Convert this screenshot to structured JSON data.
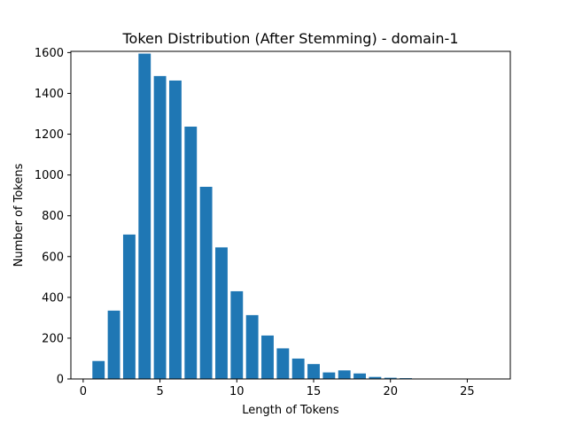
{
  "chart_data": {
    "type": "bar",
    "title": "Token Distribution (After Stemming) - domain-1",
    "xlabel": "Length of Tokens",
    "ylabel": "Number of Tokens",
    "x": [
      1,
      2,
      3,
      4,
      5,
      6,
      7,
      8,
      9,
      10,
      11,
      12,
      13,
      14,
      15,
      16,
      17,
      18,
      19,
      20,
      21,
      22,
      23,
      24,
      25,
      26
    ],
    "values": [
      88,
      335,
      708,
      1595,
      1485,
      1463,
      1237,
      942,
      645,
      430,
      313,
      213,
      150,
      100,
      73,
      32,
      42,
      27,
      10,
      6,
      4,
      1,
      0,
      0,
      0,
      1
    ],
    "xlim": [
      -0.8,
      27.8
    ],
    "ylim": [
      0,
      1600
    ],
    "xticks": [
      "0",
      "5",
      "10",
      "15",
      "20",
      "25"
    ],
    "yticks": [
      "0",
      "200",
      "400",
      "600",
      "800",
      "1000",
      "1200",
      "1400",
      "1600"
    ],
    "bar_color": "#1f77b4",
    "grid": false,
    "legend": "none"
  }
}
